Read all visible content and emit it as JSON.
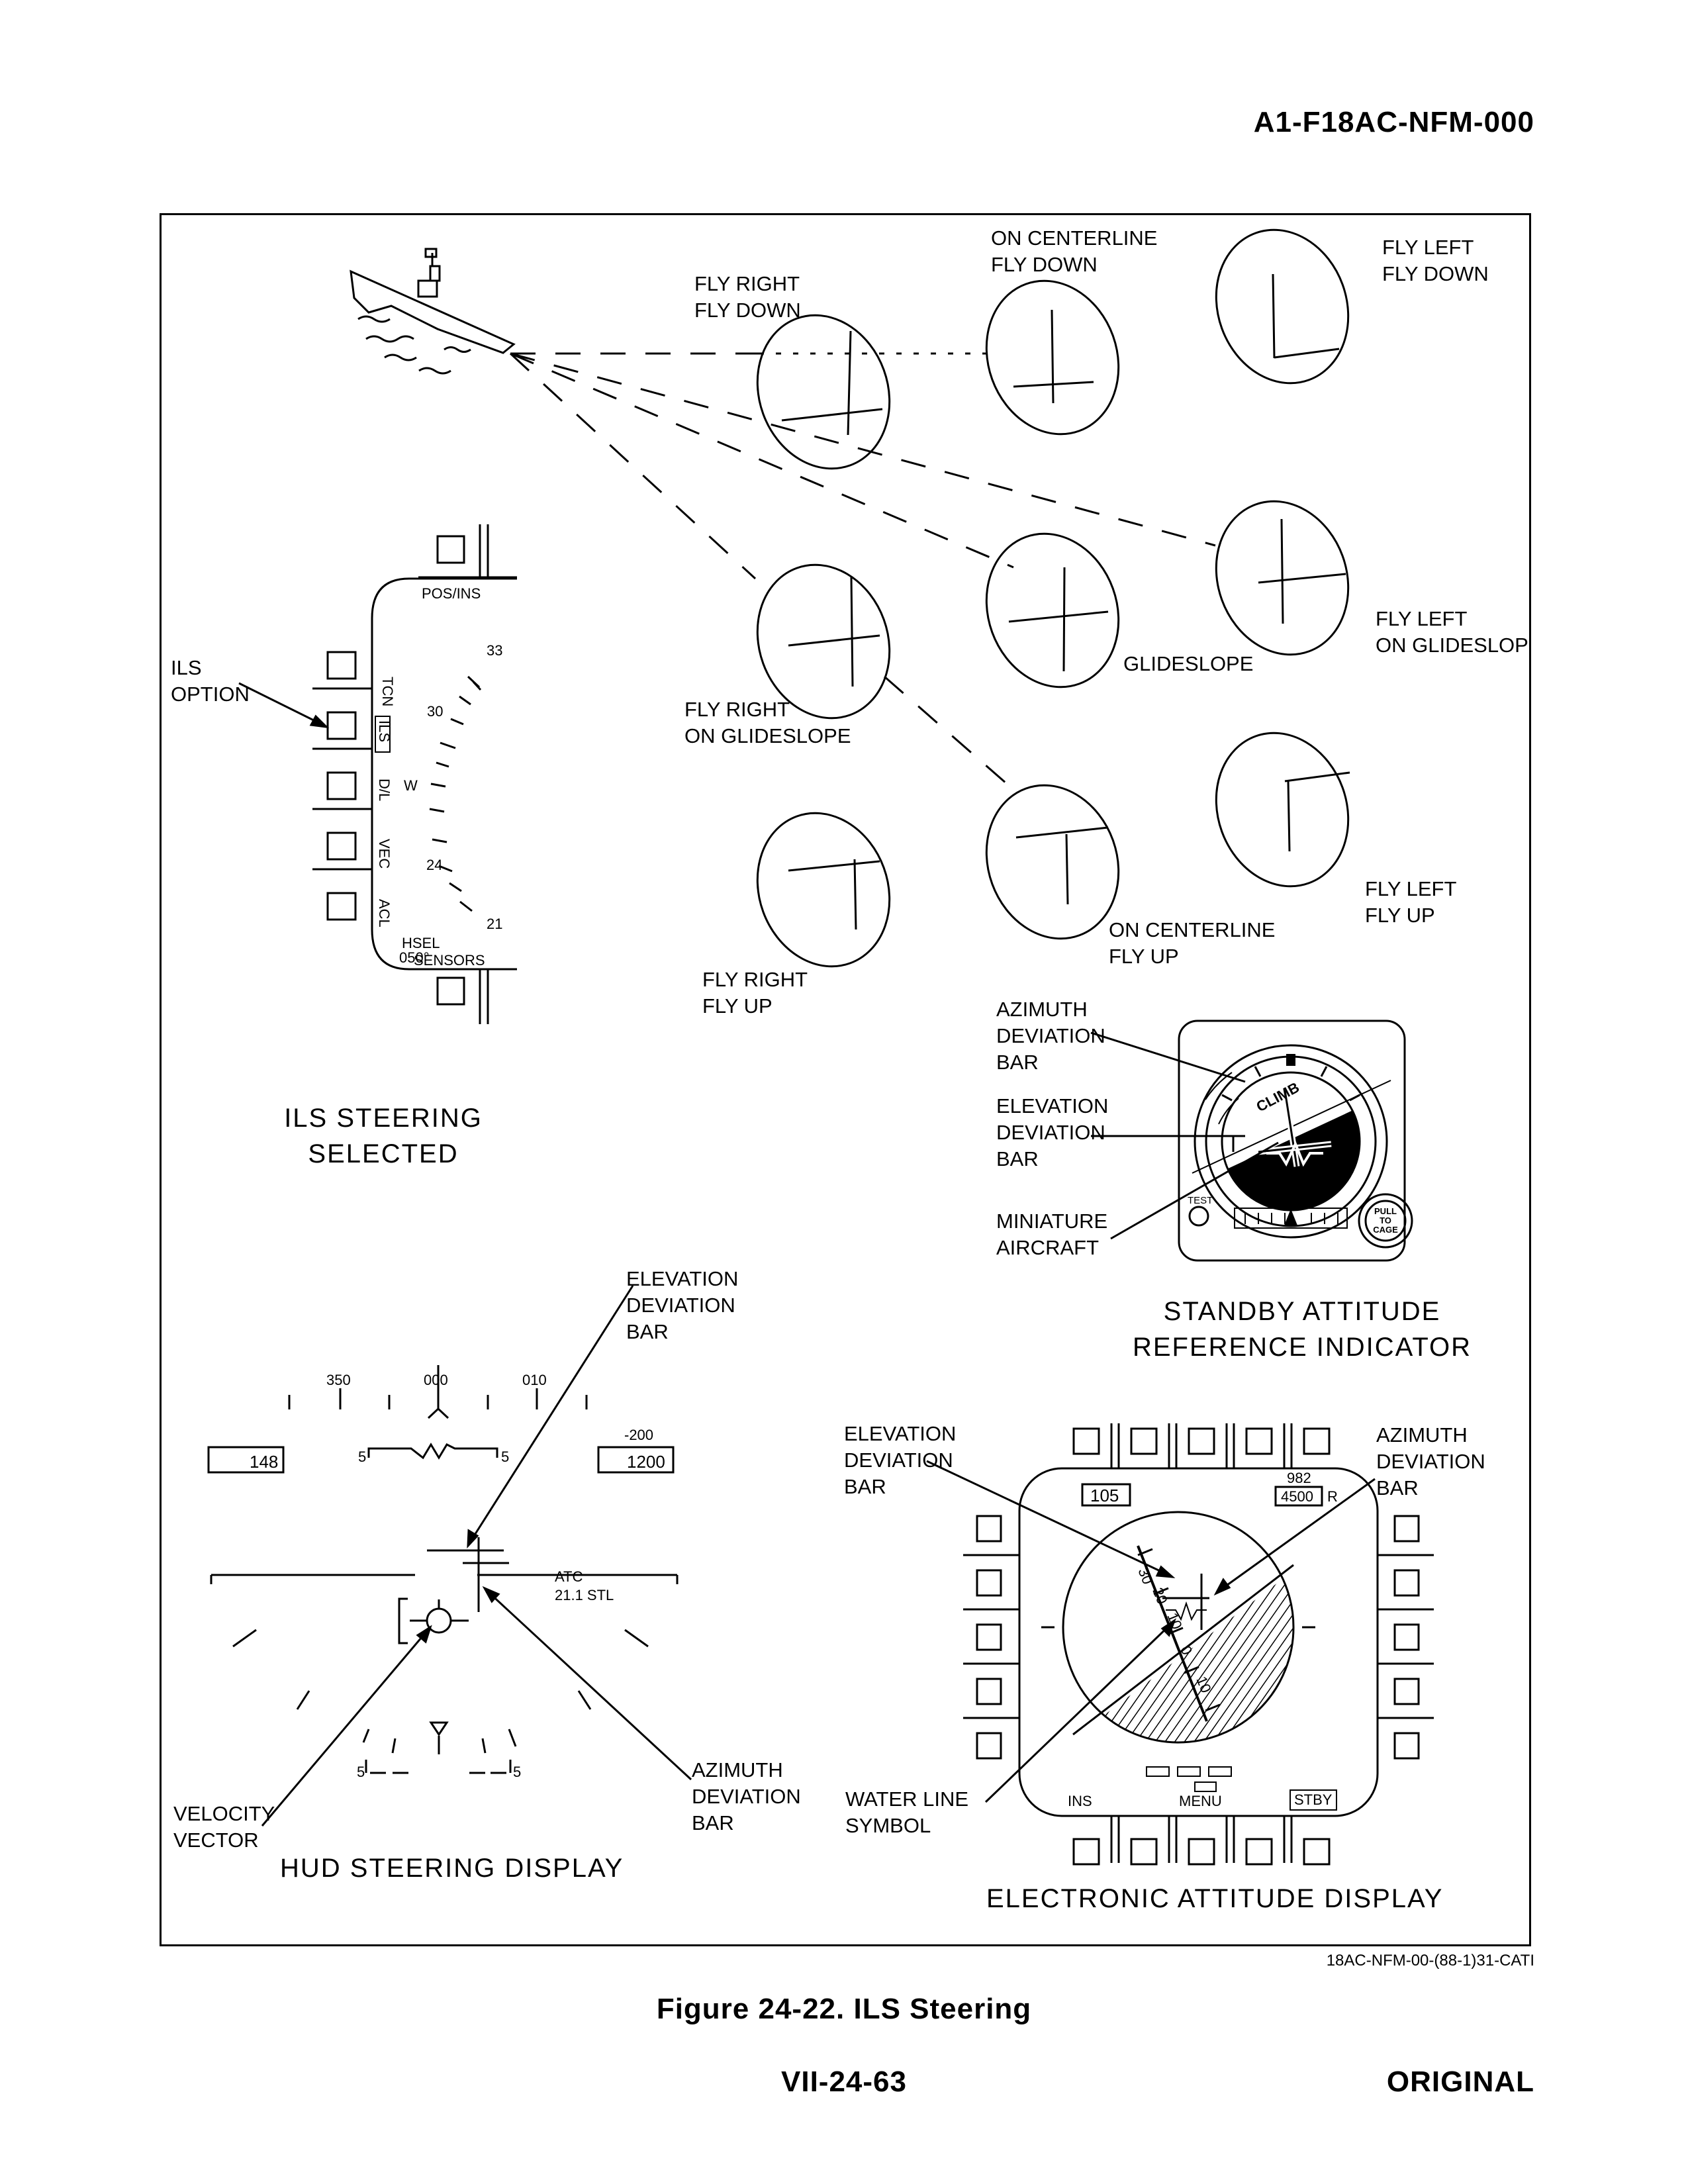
{
  "header": {
    "doc_id": "A1-F18AC-NFM-000"
  },
  "footer": {
    "caption": "Figure 24-22. ILS Steering",
    "page": "VII-24-63",
    "status": "ORIGINAL",
    "art_code": "18AC-NFM-00-(88-1)31-CATI"
  },
  "steering_states": {
    "fly_right_fly_down": [
      "FLY RIGHT",
      "FLY DOWN"
    ],
    "on_centerline_fly_down": [
      "ON CENTERLINE",
      "FLY DOWN"
    ],
    "fly_left_fly_down": [
      "FLY LEFT",
      "FLY DOWN"
    ],
    "fly_right_on_glideslope": [
      "FLY RIGHT",
      "ON GLIDESLOPE"
    ],
    "glideslope": [
      "GLIDESLOPE"
    ],
    "fly_left_on_glideslope": [
      "FLY LEFT",
      "ON GLIDESLOPE"
    ],
    "fly_right_fly_up": [
      "FLY RIGHT",
      "FLY UP"
    ],
    "on_centerline_fly_up": [
      "ON CENTERLINE",
      "FLY UP"
    ],
    "fly_left_fly_up": [
      "FLY LEFT",
      "FLY UP"
    ]
  },
  "hsi_panel": {
    "title": [
      "ILS STEERING",
      "SELECTED"
    ],
    "callout": [
      "ILS",
      "OPTION"
    ],
    "top_label": "POS/INS",
    "bottom_label": "SENSORS",
    "side_options": [
      "TCN",
      "ILS",
      "D/L",
      "VEC",
      "ACL"
    ],
    "compass": [
      "33",
      "30",
      "W",
      "24",
      "21"
    ],
    "hsel": [
      "HSEL",
      "050°"
    ]
  },
  "sari": {
    "title": [
      "STANDBY ATTITUDE",
      "REFERENCE INDICATOR"
    ],
    "callouts": {
      "azimuth": [
        "AZIMUTH",
        "DEVIATION",
        "BAR"
      ],
      "elevation": [
        "ELEVATION",
        "DEVIATION",
        "BAR"
      ],
      "miniature": [
        "MINIATURE",
        "AIRCRAFT"
      ]
    },
    "climb": "CLIMB",
    "test": "TEST",
    "pull": [
      "PULL",
      "TO",
      "CAGE"
    ]
  },
  "hud": {
    "title": "HUD STEERING DISPLAY",
    "heading_scale": [
      "350",
      "000",
      "010"
    ],
    "airspeed": "148",
    "altitude": "1200",
    "vertical_velocity": "-200",
    "pitch_label": "5",
    "atc": [
      "ATC",
      "21.1 STL"
    ],
    "callouts": {
      "elevation": [
        "ELEVATION",
        "DEVIATION",
        "BAR"
      ],
      "azimuth": [
        "AZIMUTH",
        "DEVIATION",
        "BAR"
      ],
      "velocity": [
        "VELOCITY",
        "VECTOR"
      ]
    }
  },
  "ead": {
    "title": "ELECTRONIC ATTITUDE DISPLAY",
    "airspeed": "105",
    "altitude_top": "982",
    "altitude": "4500",
    "altitude_suffix": "R",
    "pitch_labels": [
      "30",
      "20",
      "10",
      "0",
      "10"
    ],
    "bottom_labels": [
      "INS",
      "MENU",
      "STBY"
    ],
    "callouts": {
      "elevation": [
        "ELEVATION",
        "DEVIATION",
        "BAR"
      ],
      "azimuth": [
        "AZIMUTH",
        "DEVIATION",
        "BAR"
      ],
      "water_line": [
        "WATER LINE",
        "SYMBOL"
      ]
    }
  }
}
